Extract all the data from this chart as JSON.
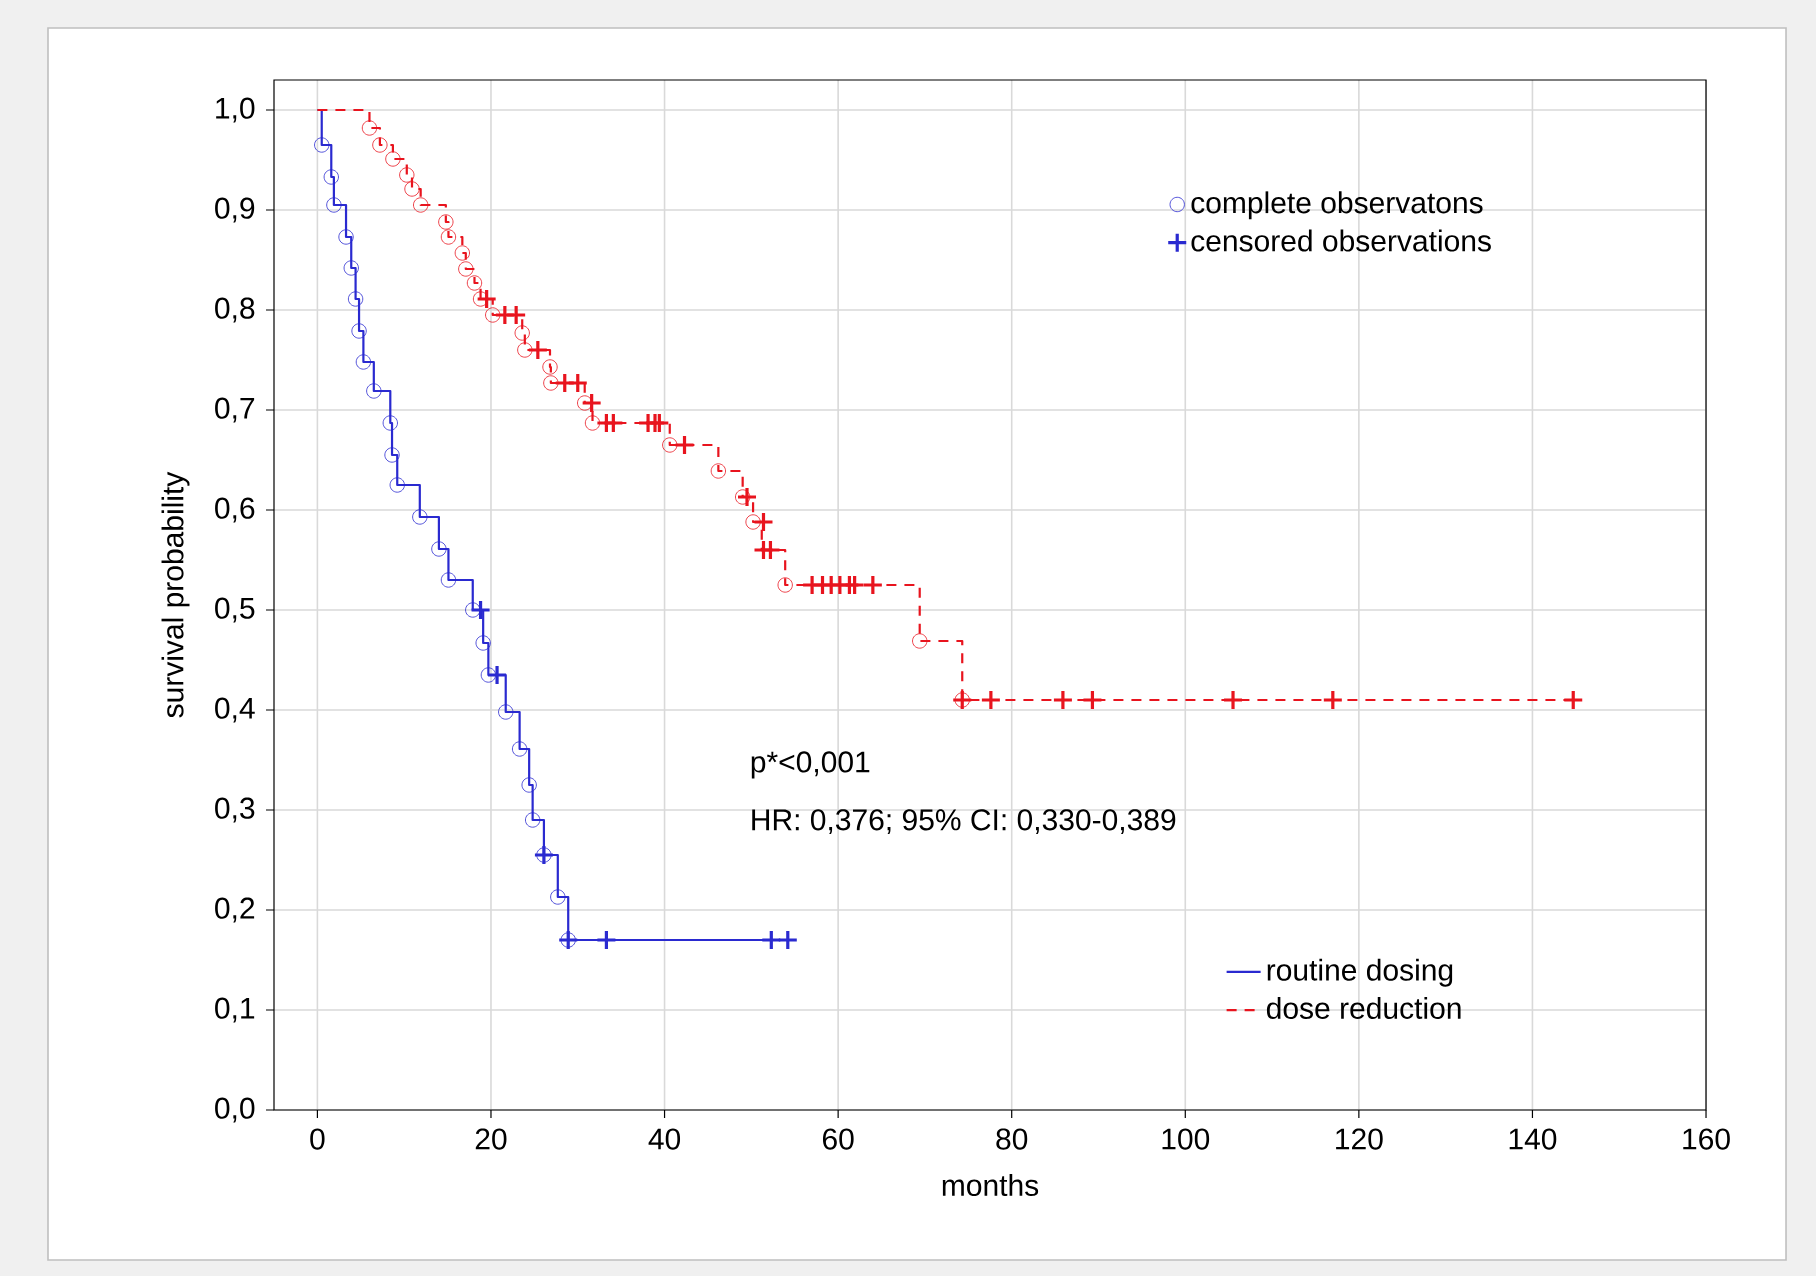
{
  "chart_data": {
    "type": "step",
    "xlabel": "months",
    "ylabel": "survival probability",
    "xlim": [
      -5,
      160
    ],
    "ylim": [
      0,
      1.03
    ],
    "xticks": [
      0,
      20,
      40,
      60,
      80,
      100,
      120,
      140,
      160
    ],
    "yticks": [
      {
        "value": 0,
        "label": "0,0"
      },
      {
        "value": 0.1,
        "label": "0,1"
      },
      {
        "value": 0.2,
        "label": "0,2"
      },
      {
        "value": 0.3,
        "label": "0,3"
      },
      {
        "value": 0.4,
        "label": "0,4"
      },
      {
        "value": 0.5,
        "label": "0,5"
      },
      {
        "value": 0.6,
        "label": "0,6"
      },
      {
        "value": 0.7,
        "label": "0,7"
      },
      {
        "value": 0.8,
        "label": "0,8"
      },
      {
        "value": 0.9,
        "label": "0,9"
      },
      {
        "value": 1.0,
        "label": "1,0"
      }
    ],
    "grid": true,
    "legend": "right",
    "annotations": [
      "p*<0,001",
      "HR: 0,376; 95% CI: 0,330-0,389"
    ],
    "series": [
      {
        "name": "routine dosing",
        "line_style": "solid",
        "color": "#2a2ad0",
        "x": [
          0,
          0.5,
          1.6,
          1.9,
          3.3,
          3.9,
          4.4,
          4.8,
          5.3,
          6.5,
          8.4,
          8.6,
          9.2,
          11.8,
          14.0,
          15.1,
          17.9,
          19.1,
          19.7,
          21.7,
          23.3,
          24.4,
          24.8,
          26.1,
          27.7,
          28.9,
          54.2
        ],
        "values": [
          1.0,
          0.965,
          0.933,
          0.905,
          0.873,
          0.842,
          0.811,
          0.779,
          0.748,
          0.719,
          0.687,
          0.655,
          0.625,
          0.593,
          0.561,
          0.53,
          0.5,
          0.467,
          0.435,
          0.398,
          0.361,
          0.325,
          0.29,
          0.255,
          0.213,
          0.17,
          0.17
        ]
      },
      {
        "name": "dose reduction",
        "line_style": "dashed",
        "color": "#e8141e",
        "x": [
          0,
          6.0,
          7.2,
          8.7,
          10.3,
          10.9,
          11.9,
          14.8,
          15.1,
          16.7,
          17.1,
          18.1,
          18.8,
          20.2,
          23.6,
          23.9,
          26.8,
          26.9,
          30.8,
          31.7,
          40.6,
          46.2,
          49.0,
          50.2,
          51.2,
          53.9,
          69.4,
          74.3,
          144.7
        ],
        "values": [
          1.0,
          0.982,
          0.965,
          0.951,
          0.935,
          0.921,
          0.905,
          0.888,
          0.873,
          0.857,
          0.841,
          0.827,
          0.811,
          0.795,
          0.777,
          0.76,
          0.743,
          0.727,
          0.707,
          0.687,
          0.665,
          0.639,
          0.613,
          0.588,
          0.56,
          0.525,
          0.469,
          0.41,
          0.41
        ]
      },
      {
        "name": "complete observatons",
        "type": "scatter",
        "marker": "circle",
        "color": "#2a2ad0",
        "x": [
          0.5,
          1.6,
          1.9,
          3.3,
          3.9,
          4.4,
          4.8,
          5.3,
          6.5,
          8.4,
          8.6,
          9.2,
          11.8,
          14.0,
          15.1,
          17.9,
          19.1,
          19.7,
          21.7,
          23.3,
          24.4,
          24.8,
          26.1,
          27.7,
          28.9
        ],
        "values": [
          0.965,
          0.933,
          0.905,
          0.873,
          0.842,
          0.811,
          0.779,
          0.748,
          0.719,
          0.687,
          0.655,
          0.625,
          0.593,
          0.561,
          0.53,
          0.5,
          0.467,
          0.435,
          0.398,
          0.361,
          0.325,
          0.29,
          0.255,
          0.213,
          0.17
        ]
      },
      {
        "name": "censored observations",
        "type": "scatter",
        "marker": "cross",
        "color": "#2a2ad0",
        "x": [
          18.8,
          20.7,
          26.1,
          28.9,
          33.3,
          52.3,
          54.2
        ],
        "values": [
          0.5,
          0.435,
          0.255,
          0.17,
          0.17,
          0.17,
          0.17
        ]
      },
      {
        "type": "scatter",
        "marker": "circle",
        "color": "#e8141e",
        "x": [
          6.0,
          7.2,
          8.7,
          10.3,
          10.9,
          11.9,
          14.8,
          15.1,
          16.7,
          17.1,
          18.1,
          18.8,
          20.2,
          23.6,
          23.9,
          26.8,
          26.9,
          30.8,
          31.7,
          40.6,
          46.2,
          49.0,
          50.2,
          53.9,
          69.4,
          74.3
        ],
        "values": [
          0.982,
          0.965,
          0.951,
          0.935,
          0.921,
          0.905,
          0.888,
          0.873,
          0.857,
          0.841,
          0.827,
          0.811,
          0.795,
          0.777,
          0.76,
          0.743,
          0.727,
          0.707,
          0.687,
          0.665,
          0.639,
          0.613,
          0.588,
          0.525,
          0.469,
          0.41
        ]
      },
      {
        "type": "scatter",
        "marker": "cross",
        "color": "#e8141e",
        "x": [
          19.5,
          21.6,
          22.9,
          25.4,
          28.5,
          30.0,
          31.6,
          33.3,
          34.1,
          38.1,
          38.9,
          39.4,
          42.3,
          49.5,
          51.4,
          51.4,
          52.2,
          57.0,
          58.2,
          59.2,
          60.2,
          61.3,
          61.9,
          64.0,
          74.3,
          77.6,
          85.9,
          89.3,
          105.5,
          117.0,
          144.7
        ],
        "values": [
          0.811,
          0.795,
          0.795,
          0.76,
          0.727,
          0.727,
          0.707,
          0.687,
          0.687,
          0.687,
          0.687,
          0.687,
          0.665,
          0.613,
          0.588,
          0.56,
          0.56,
          0.525,
          0.525,
          0.525,
          0.525,
          0.525,
          0.525,
          0.525,
          0.41,
          0.41,
          0.41,
          0.41,
          0.41,
          0.41,
          0.41
        ]
      }
    ]
  }
}
